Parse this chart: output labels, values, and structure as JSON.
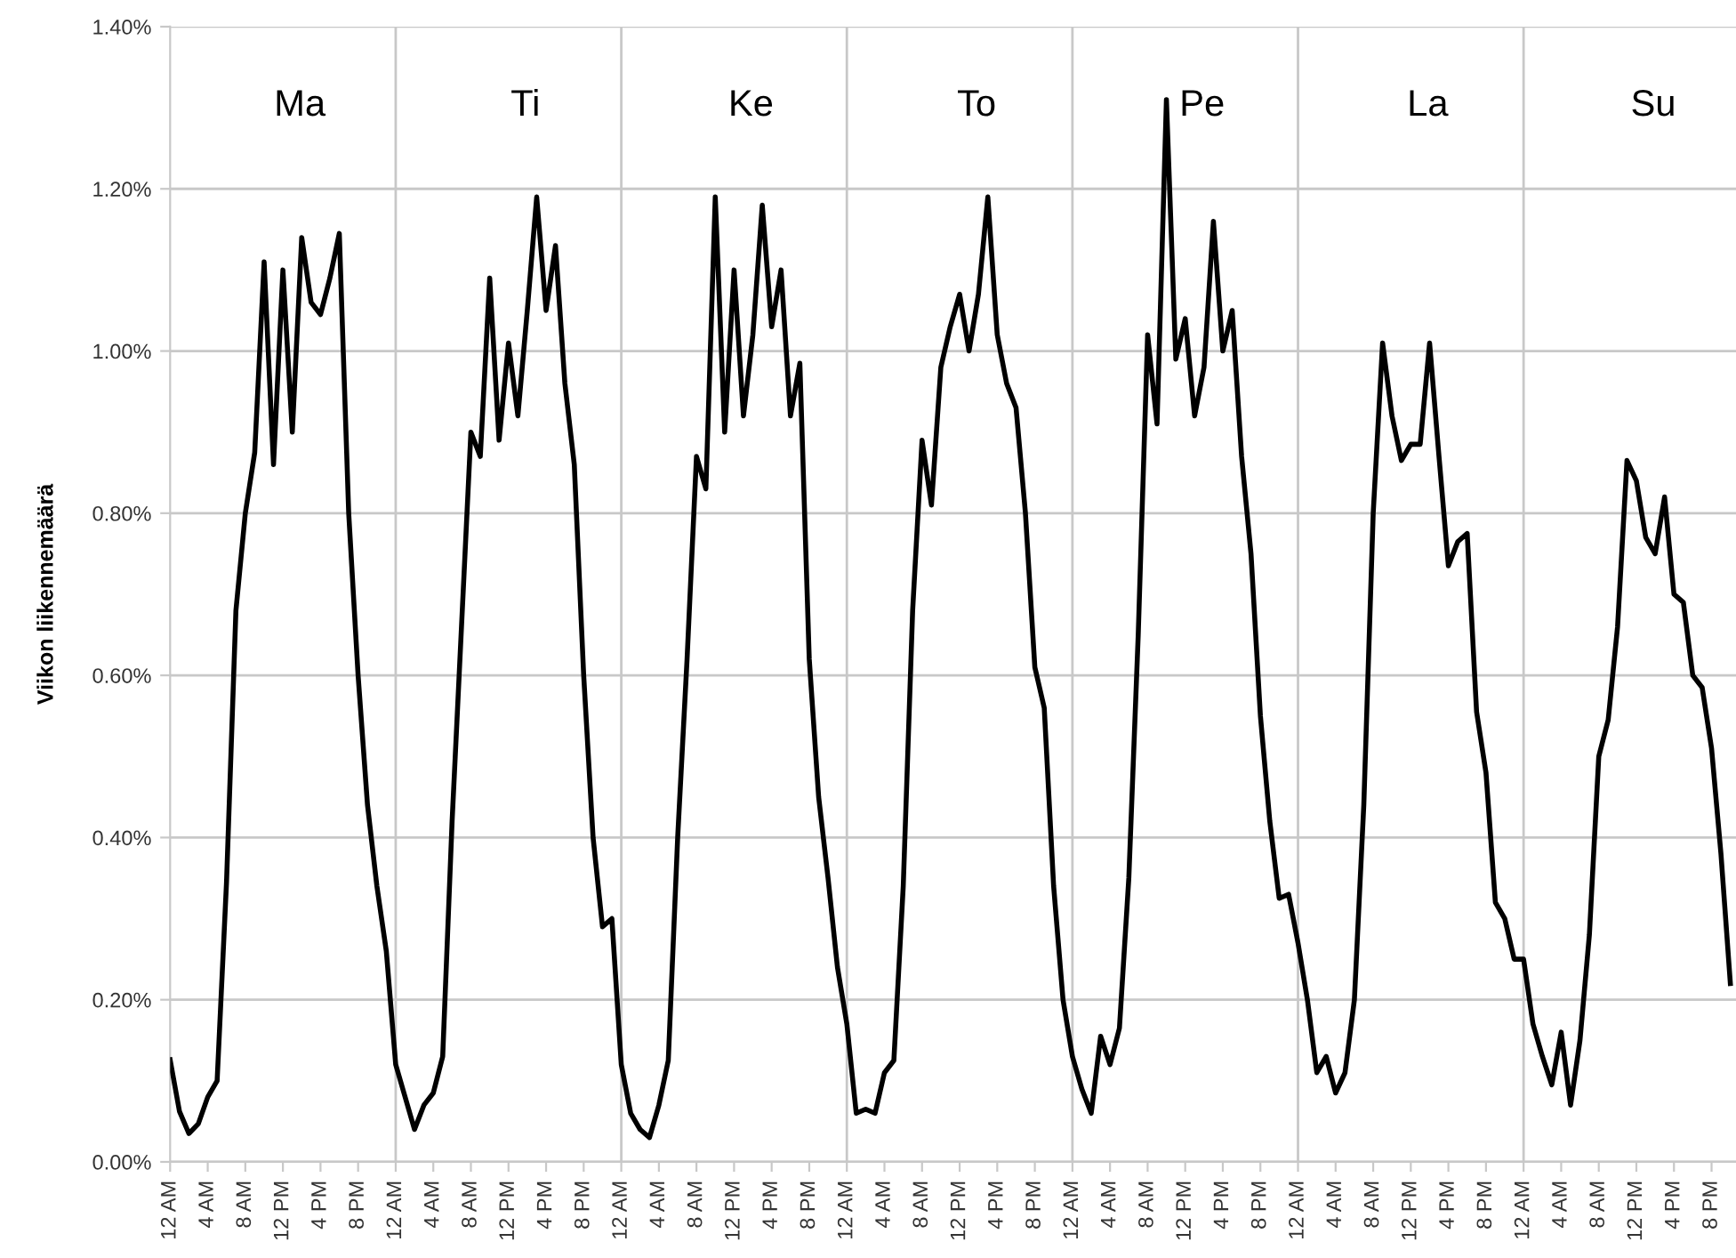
{
  "chart_data": {
    "type": "line",
    "ylabel": "Viikon liikennemäärä",
    "categories": [
      "12 AM",
      null,
      null,
      null,
      "4 AM",
      null,
      null,
      null,
      "8 AM",
      null,
      null,
      null,
      "12 PM",
      null,
      null,
      null,
      "4 PM",
      null,
      null,
      null,
      "8 PM",
      null,
      null,
      null,
      "12 AM",
      null,
      null,
      null,
      "4 AM",
      null,
      null,
      null,
      "8 AM",
      null,
      null,
      null,
      "12 PM",
      null,
      null,
      null,
      "4 PM",
      null,
      null,
      null,
      "8 PM",
      null,
      null,
      null,
      "12 AM",
      null,
      null,
      null,
      "4 AM",
      null,
      null,
      null,
      "8 AM",
      null,
      null,
      null,
      "12 PM",
      null,
      null,
      null,
      "4 PM",
      null,
      null,
      null,
      "8 PM",
      null,
      null,
      null,
      "12 AM",
      null,
      null,
      null,
      "4 AM",
      null,
      null,
      null,
      "8 AM",
      null,
      null,
      null,
      "12 PM",
      null,
      null,
      null,
      "4 PM",
      null,
      null,
      null,
      "8 PM",
      null,
      null,
      null,
      "12 AM",
      null,
      null,
      null,
      "4 AM",
      null,
      null,
      null,
      "8 AM",
      null,
      null,
      null,
      "12 PM",
      null,
      null,
      null,
      "4 PM",
      null,
      null,
      null,
      "8 PM",
      null,
      null,
      null,
      "12 AM",
      null,
      null,
      null,
      "4 AM",
      null,
      null,
      null,
      "8 AM",
      null,
      null,
      null,
      "12 PM",
      null,
      null,
      null,
      "4 PM",
      null,
      null,
      null,
      "8 PM",
      null,
      null,
      null,
      "12 AM",
      null,
      null,
      null,
      "4 AM",
      null,
      null,
      null,
      "8 AM",
      null,
      null,
      null,
      "12 PM",
      null,
      null,
      null,
      "4 PM",
      null,
      null,
      null,
      "8 PM",
      null,
      null
    ],
    "series": [
      {
        "color": "#000000",
        "values": [
          0.126,
          0.062,
          0.035,
          0.047,
          0.08,
          0.1,
          0.345,
          0.68,
          0.8,
          0.875,
          1.11,
          0.86,
          1.1,
          0.9,
          1.14,
          1.06,
          1.045,
          1.09,
          1.145,
          0.8,
          0.6,
          0.44,
          0.34,
          0.26,
          0.12,
          0.08,
          0.04,
          0.07,
          0.085,
          0.13,
          0.42,
          0.66,
          0.9,
          0.87,
          1.09,
          0.89,
          1.01,
          0.92,
          1.05,
          1.19,
          1.05,
          1.13,
          0.96,
          0.86,
          0.6,
          0.4,
          0.29,
          0.3,
          0.12,
          0.06,
          0.04,
          0.03,
          0.07,
          0.125,
          0.4,
          0.62,
          0.87,
          0.83,
          1.19,
          0.9,
          1.1,
          0.92,
          1.02,
          1.18,
          1.03,
          1.1,
          0.92,
          0.985,
          0.62,
          0.45,
          0.35,
          0.24,
          0.17,
          0.06,
          0.065,
          0.06,
          0.11,
          0.125,
          0.34,
          0.68,
          0.89,
          0.81,
          0.98,
          1.03,
          1.07,
          1.0,
          1.07,
          1.19,
          1.02,
          0.96,
          0.93,
          0.8,
          0.61,
          0.56,
          0.34,
          0.2,
          0.13,
          0.09,
          0.06,
          0.155,
          0.12,
          0.165,
          0.35,
          0.65,
          1.02,
          0.91,
          1.31,
          0.99,
          1.04,
          0.92,
          0.98,
          1.16,
          1.0,
          1.05,
          0.87,
          0.75,
          0.55,
          0.42,
          0.325,
          0.33,
          0.27,
          0.2,
          0.11,
          0.13,
          0.085,
          0.11,
          0.2,
          0.44,
          0.8,
          1.01,
          0.92,
          0.865,
          0.885,
          0.885,
          1.01,
          0.87,
          0.735,
          0.765,
          0.775,
          0.555,
          0.48,
          0.32,
          0.3,
          0.25,
          0.25,
          0.17,
          0.13,
          0.095,
          0.16,
          0.07,
          0.15,
          0.28,
          0.5,
          0.545,
          0.66,
          0.865,
          0.84,
          0.77,
          0.75,
          0.82,
          0.7,
          0.69,
          0.6,
          0.585,
          0.51,
          0.38,
          0.22
        ]
      }
    ],
    "ylim": [
      0,
      1.4
    ],
    "yticks": [
      {
        "value": 0,
        "label": "0.00%"
      },
      {
        "value": 0.2,
        "label": "0.20%"
      },
      {
        "value": 0.4,
        "label": "0.40%"
      },
      {
        "value": 0.6,
        "label": "0.60%"
      },
      {
        "value": 0.8,
        "label": "0.80%"
      },
      {
        "value": 1.0,
        "label": "1.00%"
      },
      {
        "value": 1.2,
        "label": "1.20%"
      },
      {
        "value": 1.4,
        "label": "1.40%"
      }
    ],
    "grid": "y",
    "annotations": [
      "Ma",
      "Ti",
      "Ke",
      "To",
      "Pe",
      "La",
      "Su"
    ]
  }
}
